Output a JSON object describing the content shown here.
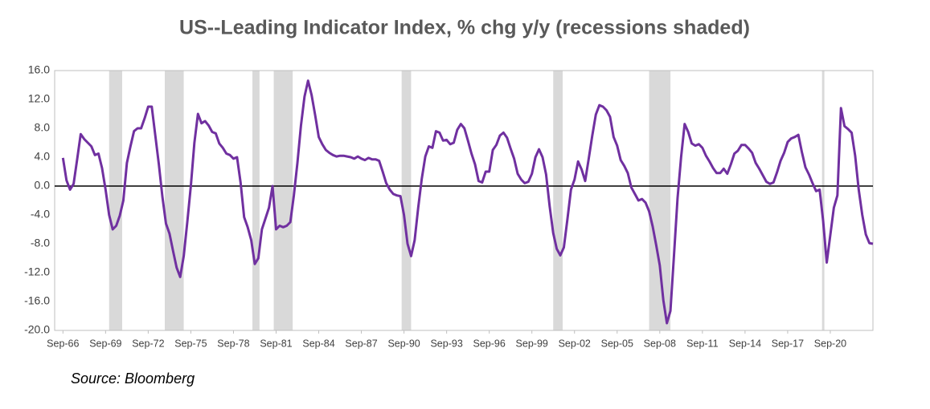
{
  "chart_data": {
    "type": "line",
    "title": "US--Leading Indicator Index, % chg y/y (recessions shaded)",
    "source": "Source: Bloomberg",
    "color": "#7030a0",
    "recession_color": "#d9d9d9",
    "zero_line": true,
    "grid": false,
    "ylim": [
      -20,
      16
    ],
    "yticks": [
      {
        "value": -20,
        "label": "-20.0"
      },
      {
        "value": -16,
        "label": "-16.0"
      },
      {
        "value": -12,
        "label": "-12.0"
      },
      {
        "value": -8,
        "label": "-8.0"
      },
      {
        "value": -4,
        "label": "-4.0"
      },
      {
        "value": 0,
        "label": "0.0"
      },
      {
        "value": 4,
        "label": "4.0"
      },
      {
        "value": 8,
        "label": "8.0"
      },
      {
        "value": 12,
        "label": "12.0"
      },
      {
        "value": 16,
        "label": "16.0"
      }
    ],
    "xlim": [
      "Feb-66",
      "Sep-23"
    ],
    "xticks": [
      "Sep-66",
      "Sep-69",
      "Sep-72",
      "Sep-75",
      "Sep-78",
      "Sep-81",
      "Sep-84",
      "Sep-87",
      "Sep-90",
      "Sep-93",
      "Sep-96",
      "Sep-99",
      "Sep-02",
      "Sep-05",
      "Sep-08",
      "Sep-11",
      "Sep-14",
      "Sep-17",
      "Sep-20"
    ],
    "recessions": [
      {
        "start": "Dec-69",
        "end": "Nov-70"
      },
      {
        "start": "Nov-73",
        "end": "Mar-75"
      },
      {
        "start": "Jan-80",
        "end": "Jul-80"
      },
      {
        "start": "Jul-81",
        "end": "Nov-82"
      },
      {
        "start": "Jul-90",
        "end": "Mar-91"
      },
      {
        "start": "Mar-01",
        "end": "Nov-01"
      },
      {
        "start": "Dec-07",
        "end": "Jun-09"
      },
      {
        "start": "Feb-20",
        "end": "Apr-20"
      }
    ],
    "x": [
      "Sep-66",
      "Dec-66",
      "Mar-67",
      "Jun-67",
      "Sep-67",
      "Dec-67",
      "Mar-68",
      "Jun-68",
      "Sep-68",
      "Dec-68",
      "Mar-69",
      "Jun-69",
      "Sep-69",
      "Dec-69",
      "Mar-70",
      "Jun-70",
      "Sep-70",
      "Dec-70",
      "Mar-71",
      "Jun-71",
      "Sep-71",
      "Dec-71",
      "Mar-72",
      "Jun-72",
      "Sep-72",
      "Dec-72",
      "Mar-73",
      "Jun-73",
      "Sep-73",
      "Dec-73",
      "Mar-74",
      "Jun-74",
      "Sep-74",
      "Dec-74",
      "Mar-75",
      "Jun-75",
      "Sep-75",
      "Dec-75",
      "Mar-76",
      "Jun-76",
      "Sep-76",
      "Dec-76",
      "Mar-77",
      "Jun-77",
      "Sep-77",
      "Dec-77",
      "Mar-78",
      "Jun-78",
      "Sep-78",
      "Dec-78",
      "Mar-79",
      "Jun-79",
      "Sep-79",
      "Dec-79",
      "Mar-80",
      "Jun-80",
      "Sep-80",
      "Dec-80",
      "Mar-81",
      "Jun-81",
      "Sep-81",
      "Dec-81",
      "Mar-82",
      "Jun-82",
      "Sep-82",
      "Dec-82",
      "Mar-83",
      "Jun-83",
      "Sep-83",
      "Dec-83",
      "Mar-84",
      "Jun-84",
      "Sep-84",
      "Dec-84",
      "Mar-85",
      "Jun-85",
      "Sep-85",
      "Dec-85",
      "Mar-86",
      "Jun-86",
      "Sep-86",
      "Dec-86",
      "Mar-87",
      "Jun-87",
      "Sep-87",
      "Dec-87",
      "Mar-88",
      "Jun-88",
      "Sep-88",
      "Dec-88",
      "Mar-89",
      "Jun-89",
      "Sep-89",
      "Dec-89",
      "Mar-90",
      "Jun-90",
      "Sep-90",
      "Dec-90",
      "Mar-91",
      "Jun-91",
      "Sep-91",
      "Dec-91",
      "Mar-92",
      "Jun-92",
      "Sep-92",
      "Dec-92",
      "Mar-93",
      "Jun-93",
      "Sep-93",
      "Dec-93",
      "Mar-94",
      "Jun-94",
      "Sep-94",
      "Dec-94",
      "Mar-95",
      "Jun-95",
      "Sep-95",
      "Dec-95",
      "Mar-96",
      "Jun-96",
      "Sep-96",
      "Dec-96",
      "Mar-97",
      "Jun-97",
      "Sep-97",
      "Dec-97",
      "Mar-98",
      "Jun-98",
      "Sep-98",
      "Dec-98",
      "Mar-99",
      "Jun-99",
      "Sep-99",
      "Dec-99",
      "Mar-00",
      "Jun-00",
      "Sep-00",
      "Dec-00",
      "Mar-01",
      "Jun-01",
      "Sep-01",
      "Dec-01",
      "Mar-02",
      "Jun-02",
      "Sep-02",
      "Dec-02",
      "Mar-03",
      "Jun-03",
      "Sep-03",
      "Dec-03",
      "Mar-04",
      "Jun-04",
      "Sep-04",
      "Dec-04",
      "Mar-05",
      "Jun-05",
      "Sep-05",
      "Dec-05",
      "Mar-06",
      "Jun-06",
      "Sep-06",
      "Dec-06",
      "Mar-07",
      "Jun-07",
      "Sep-07",
      "Dec-07",
      "Mar-08",
      "Jun-08",
      "Sep-08",
      "Dec-08",
      "Mar-09",
      "Jun-09",
      "Sep-09",
      "Dec-09",
      "Mar-10",
      "Jun-10",
      "Sep-10",
      "Dec-10",
      "Mar-11",
      "Jun-11",
      "Sep-11",
      "Dec-11",
      "Mar-12",
      "Jun-12",
      "Sep-12",
      "Dec-12",
      "Mar-13",
      "Jun-13",
      "Sep-13",
      "Dec-13",
      "Mar-14",
      "Jun-14",
      "Sep-14",
      "Dec-14",
      "Mar-15",
      "Jun-15",
      "Sep-15",
      "Dec-15",
      "Mar-16",
      "Jun-16",
      "Sep-16",
      "Dec-16",
      "Mar-17",
      "Jun-17",
      "Sep-17",
      "Dec-17",
      "Mar-18",
      "Jun-18",
      "Sep-18",
      "Dec-18",
      "Mar-19",
      "Jun-19",
      "Sep-19",
      "Dec-19",
      "Mar-20",
      "Jun-20",
      "Sep-20",
      "Dec-20",
      "Mar-21",
      "Jun-21",
      "Sep-21",
      "Dec-21",
      "Mar-22",
      "Jun-22",
      "Sep-22",
      "Dec-22",
      "Mar-23",
      "Jun-23",
      "Sep-23"
    ],
    "values": [
      3.9,
      0.8,
      -0.5,
      0.3,
      3.7,
      7.2,
      6.5,
      6.0,
      5.5,
      4.3,
      4.5,
      2.5,
      -0.5,
      -4,
      -6,
      -5.5,
      -4.1,
      -2,
      3.2,
      5.5,
      7.6,
      8,
      8,
      9.4,
      11,
      11,
      7,
      3,
      -1.5,
      -5.2,
      -6.6,
      -9,
      -11.3,
      -12.6,
      -9.7,
      -5,
      0,
      6,
      10,
      8.7,
      9,
      8.4,
      7.5,
      7.3,
      5.9,
      5.3,
      4.5,
      4.3,
      3.8,
      4.0,
      0.5,
      -4.3,
      -5.7,
      -7.5,
      -10.8,
      -10,
      -6,
      -4.5,
      -3,
      0,
      -6,
      -5.5,
      -5.7,
      -5.5,
      -5,
      -1.3,
      3.2,
      8.4,
      12.4,
      14.6,
      12.6,
      9.8,
      6.8,
      5.8,
      5,
      4.6,
      4.3,
      4.1,
      4.2,
      4.2,
      4.1,
      4,
      3.8,
      4.1,
      3.8,
      3.6,
      3.9,
      3.7,
      3.7,
      3.5,
      2,
      0.4,
      -0.5,
      -1.1,
      -1.3,
      -1.4,
      -4,
      -8,
      -9.7,
      -7.5,
      -3,
      1,
      4.1,
      5.5,
      5.3,
      7.6,
      7.4,
      6.3,
      6.4,
      5.8,
      6.0,
      7.8,
      8.6,
      8,
      6.3,
      4.5,
      3,
      0.7,
      0.5,
      2,
      2,
      5,
      5.7,
      7,
      7.4,
      6.7,
      5.2,
      3.8,
      1.7,
      0.9,
      0.4,
      0.6,
      1.7,
      4,
      5.1,
      4,
      1.6,
      -2.8,
      -6.5,
      -8.7,
      -9.6,
      -8.5,
      -4.6,
      -0.5,
      0.9,
      3.4,
      2.3,
      0.7,
      3.8,
      7,
      9.9,
      11.2,
      11,
      10.5,
      9.6,
      6.8,
      5.6,
      3.6,
      2.8,
      1.8,
      -0.2,
      -1.1,
      -2,
      -1.8,
      -2.3,
      -3.5,
      -5.6,
      -8.2,
      -11,
      -15.8,
      -19,
      -17.3,
      -9.6,
      -1.7,
      4,
      8.6,
      7.5,
      5.9,
      5.6,
      5.8,
      5.3,
      4.2,
      3.4,
      2.5,
      1.8,
      1.8,
      2.4,
      1.7,
      3,
      4.5,
      4.9,
      5.7,
      5.7,
      5.2,
      4.6,
      3.2,
      2.4,
      1.5,
      0.6,
      0.3,
      0.5,
      1.9,
      3.5,
      4.6,
      6.1,
      6.6,
      6.8,
      7.1,
      4.7,
      2.6,
      1.6,
      0.4,
      -0.7,
      -0.5,
      -4.9,
      -10.6,
      -6.8,
      -3,
      -1.3,
      10.8,
      8.3,
      7.9,
      7.4,
      4.2,
      -0.5,
      -4,
      -6.7,
      -7.9,
      -8.0
    ]
  }
}
